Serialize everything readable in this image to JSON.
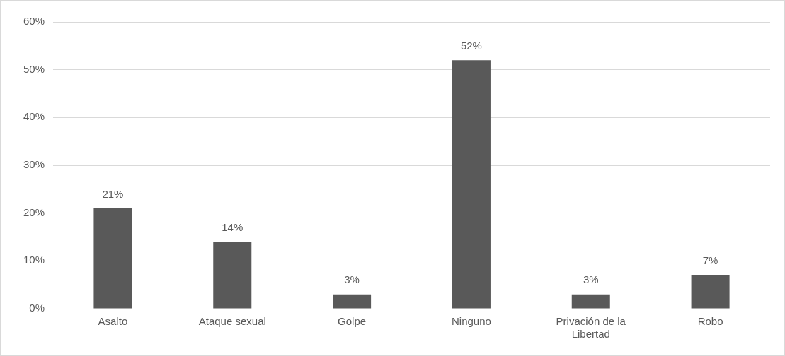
{
  "chart_data": {
    "type": "bar",
    "categories": [
      "Asalto",
      "Ataque sexual",
      "Golpe",
      "Ninguno",
      "Privación de la Libertad",
      "Robo"
    ],
    "values": [
      21,
      14,
      3,
      52,
      3,
      7
    ],
    "value_labels": [
      "21%",
      "14%",
      "3%",
      "52%",
      "3%",
      "7%"
    ],
    "color": "#595959",
    "ylim": [
      0,
      60
    ],
    "yticks": [
      {
        "value": 0,
        "label": "0%"
      },
      {
        "value": 10,
        "label": "10%"
      },
      {
        "value": 20,
        "label": "20%"
      },
      {
        "value": 30,
        "label": "30%"
      },
      {
        "value": 40,
        "label": "40%"
      },
      {
        "value": 50,
        "label": "50%"
      },
      {
        "value": 60,
        "label": "60%"
      }
    ],
    "grid": "y"
  }
}
